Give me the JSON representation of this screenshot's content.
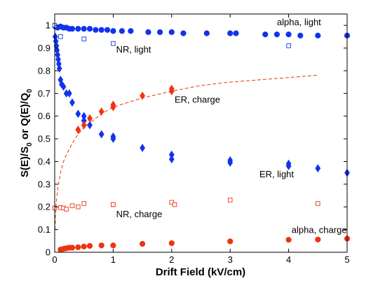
{
  "chart_data": {
    "type": "scatter",
    "xlabel": "Drift Field (kV/cm)",
    "ylabel_parts": {
      "a": "S(E)/S",
      "a_sub": "0",
      "mid": " or Q(E)/Q",
      "b_sub": "0"
    },
    "xlim": [
      0,
      5
    ],
    "ylim": [
      0,
      1.05
    ],
    "xticks": [
      0,
      1,
      2,
      3,
      4,
      5
    ],
    "yticks": [
      0,
      0.1,
      0.2,
      0.3,
      0.4,
      0.5,
      0.6,
      0.7,
      0.8,
      0.9,
      1
    ],
    "grid": false,
    "legend": "none",
    "colors": {
      "blue": "#1133ee",
      "red": "#ee3311"
    },
    "series": [
      {
        "marker": "circle",
        "filled": true,
        "color": "blue",
        "x": [
          0.01,
          0.05,
          0.1,
          0.15,
          0.2,
          0.25,
          0.3,
          0.4,
          0.5,
          0.6,
          0.7,
          0.8,
          0.9,
          1.0,
          1.15,
          1.3,
          1.6,
          1.8,
          2.0,
          2.2,
          2.6,
          3.0,
          3.1,
          3.6,
          3.8,
          4.0,
          4.2,
          4.5,
          5.0
        ],
        "y": [
          0.995,
          0.99,
          0.995,
          0.99,
          0.99,
          0.985,
          0.985,
          0.985,
          0.985,
          0.985,
          0.98,
          0.98,
          0.98,
          0.975,
          0.975,
          0.975,
          0.97,
          0.97,
          0.97,
          0.965,
          0.965,
          0.965,
          0.965,
          0.96,
          0.96,
          0.96,
          0.955,
          0.955,
          0.955
        ]
      },
      {
        "marker": "square",
        "filled": false,
        "color": "blue",
        "x": [
          0,
          0.1,
          0.5,
          1.0,
          4.0
        ],
        "y": [
          1.0,
          0.95,
          0.94,
          0.92,
          0.91
        ]
      },
      {
        "marker": "diamond",
        "filled": true,
        "color": "blue",
        "x": [
          0.01,
          0.02,
          0.03,
          0.04,
          0.05,
          0.06,
          0.07,
          0.08,
          0.1,
          0.12,
          0.15,
          0.2,
          0.25,
          0.3,
          0.4,
          0.5,
          0.5,
          0.6,
          0.8,
          1.0,
          1.0,
          1.5,
          2.0,
          2.0,
          3.0,
          3.0,
          4.0,
          4.0,
          4.5,
          5.0
        ],
        "y": [
          0.95,
          0.93,
          0.91,
          0.89,
          0.87,
          0.85,
          0.83,
          0.81,
          0.76,
          0.74,
          0.73,
          0.7,
          0.7,
          0.66,
          0.61,
          0.6,
          0.58,
          0.56,
          0.52,
          0.51,
          0.5,
          0.46,
          0.43,
          0.41,
          0.405,
          0.395,
          0.39,
          0.38,
          0.37,
          0.35
        ]
      },
      {
        "marker": "diamond",
        "filled": true,
        "color": "red",
        "x": [
          0.4,
          0.5,
          0.6,
          0.8,
          1.0,
          1.0,
          1.5,
          2.0,
          2.0
        ],
        "y": [
          0.54,
          0.56,
          0.59,
          0.62,
          0.64,
          0.65,
          0.69,
          0.71,
          0.72
        ]
      },
      {
        "marker": "square",
        "filled": false,
        "color": "red",
        "x": [
          0,
          0.1,
          0.15,
          0.2,
          0.3,
          0.4,
          0.5,
          1.0,
          1.0,
          2.0,
          2.05,
          3.0,
          4.5
        ],
        "y": [
          0.195,
          0.197,
          0.195,
          0.19,
          0.205,
          0.2,
          0.215,
          0.21,
          0.21,
          0.22,
          0.21,
          0.23,
          0.215
        ]
      },
      {
        "marker": "circle",
        "filled": true,
        "color": "red",
        "x": [
          0.1,
          0.15,
          0.2,
          0.25,
          0.3,
          0.4,
          0.5,
          0.6,
          0.8,
          1.0,
          1.5,
          2.0,
          3.0,
          4.0,
          4.5,
          5.0
        ],
        "y": [
          0.012,
          0.015,
          0.018,
          0.02,
          0.02,
          0.022,
          0.025,
          0.028,
          0.03,
          0.03,
          0.037,
          0.04,
          0.048,
          0.055,
          0.056,
          0.06
        ]
      }
    ],
    "fit_curve": {
      "style": "dashed",
      "color": "red",
      "x": [
        0.005,
        0.02,
        0.05,
        0.1,
        0.15,
        0.2,
        0.3,
        0.4,
        0.5,
        0.6,
        0.8,
        1.0,
        1.25,
        1.5,
        2.0,
        2.5,
        3.0,
        3.5,
        4.0,
        4.5
      ],
      "y": [
        0.1,
        0.2,
        0.28,
        0.35,
        0.4,
        0.43,
        0.48,
        0.52,
        0.55,
        0.57,
        0.61,
        0.64,
        0.66,
        0.68,
        0.71,
        0.735,
        0.75,
        0.76,
        0.77,
        0.78
      ]
    },
    "annotations": [
      {
        "text": "alpha, light",
        "x": 3.8,
        "y": 1.0
      },
      {
        "text": "NR, light",
        "x": 1.05,
        "y": 0.88
      },
      {
        "text": "ER, charge",
        "x": 2.05,
        "y": 0.66
      },
      {
        "text": "ER, light",
        "x": 3.5,
        "y": 0.33
      },
      {
        "text": "NR, charge",
        "x": 1.05,
        "y": 0.155
      },
      {
        "text": "alpha, charge",
        "x": 4.05,
        "y": 0.085
      }
    ]
  }
}
